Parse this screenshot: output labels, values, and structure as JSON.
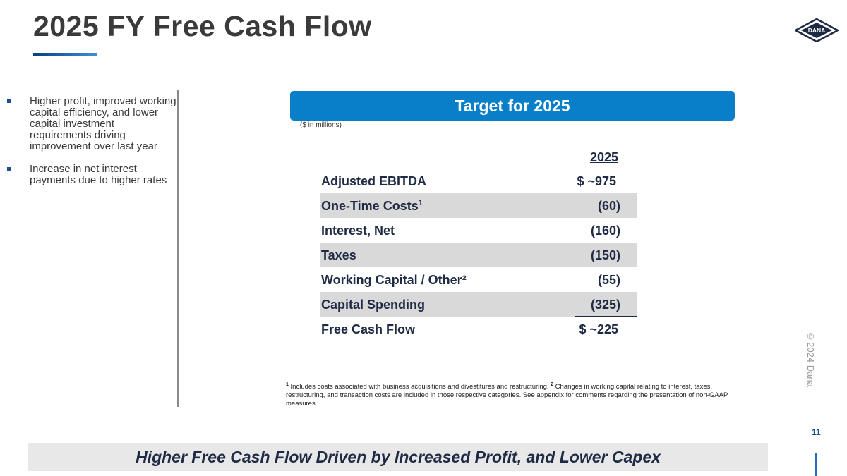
{
  "title": "2025 FY Free Cash Flow",
  "logo_text": "DANA",
  "bullets": [
    "Higher profit, improved working capital efficiency, and lower capital investment requirements driving improvement over last year",
    "Increase in net interest payments due to higher rates"
  ],
  "banner": "Target for 2025",
  "units": "($ in millions)",
  "table": {
    "column_header": "2025",
    "rows": [
      {
        "label": "Adjusted EBITDA",
        "value": "$  ~975",
        "shaded": false
      },
      {
        "label": "One-Time Costs",
        "sup": "1",
        "value": "(60)",
        "shaded": true
      },
      {
        "label": "Interest, Net",
        "value": "(160)",
        "shaded": false
      },
      {
        "label": "Taxes",
        "value": "(150)",
        "shaded": true
      },
      {
        "label": "Working Capital / Other²",
        "value": "(55)",
        "shaded": false
      },
      {
        "label": "Capital Spending",
        "value": "(325)",
        "shaded": true
      },
      {
        "label": "Free Cash Flow",
        "value": "$  ~225",
        "shaded": false
      }
    ]
  },
  "footnote": {
    "n1": "1",
    "text1": " Includes costs associated with business acquisitions and divestitures and restructuring. ",
    "n2": "2",
    "text2": " Changes in working capital relating to interest, taxes, restructuring, and transaction costs are included in those respective categories.  See appendix for comments regarding the presentation of non-GAAP measures."
  },
  "copyright": "© 2024 Dana",
  "page_number": "11",
  "bottom_banner": "Higher Free Cash Flow Driven by Increased Profit, and  Lower Capex",
  "colors": {
    "accent_blue": "#0a7fc9",
    "navy_text": "#1f2a44",
    "shade_gray": "#d9d9d9"
  }
}
